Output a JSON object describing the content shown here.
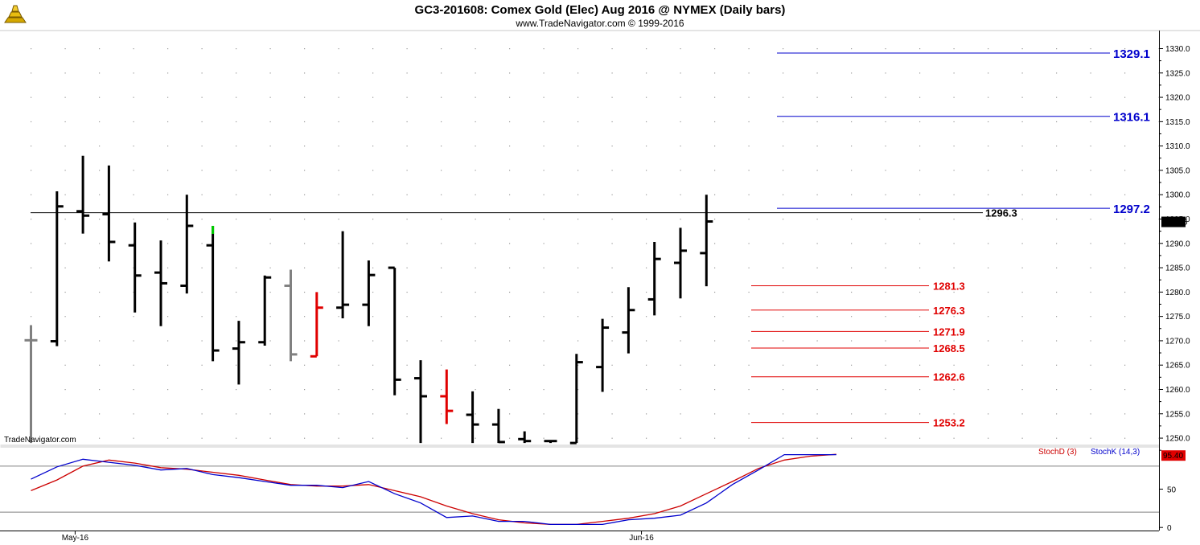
{
  "header": {
    "title": "GC3-201608:  Comex Gold (Elec) Aug 2016 @ NYMEX  (Daily bars)",
    "subtitle": "www.TradeNavigator.com © 1999-2016",
    "watermark": "TradeNavigator.com",
    "logo_icon": "gold-bars-icon"
  },
  "colors": {
    "background": "#ffffff",
    "bar_default": "#000000",
    "bar_gray": "#808080",
    "bar_red": "#e00000",
    "bar_green": "#00cc00",
    "resistance": "#0000cc",
    "support": "#e00000",
    "stoch_d": "#cc0000",
    "stoch_k": "#0000cc"
  },
  "chart_data": [
    {
      "type": "ohlc",
      "title": "GC3-201608:  Comex Gold (Elec) Aug 2016 @ NYMEX  (Daily bars)",
      "ylim": [
        1249,
        1334
      ],
      "yticks": [
        1250.0,
        1255.0,
        1260.0,
        1265.0,
        1270.0,
        1275.0,
        1280.0,
        1285.0,
        1290.0,
        1295.0,
        1300.0,
        1305.0,
        1310.0,
        1315.0,
        1320.0,
        1325.0,
        1330.0
      ],
      "xticks": [
        {
          "label": "May-16",
          "index": 1.7
        },
        {
          "label": "Jun-16",
          "index": 23.5
        }
      ],
      "last_price": 1294.5,
      "last_price_label": "1294.5",
      "bars": [
        {
          "o": 1270.1,
          "h": 1273.2,
          "l": 1249.0,
          "c": 1270.1,
          "color": "gray"
        },
        {
          "o": 1269.9,
          "h": 1300.7,
          "l": 1268.9,
          "c": 1297.6,
          "color": "black"
        },
        {
          "o": 1296.6,
          "h": 1308.0,
          "l": 1292.0,
          "c": 1295.7,
          "color": "black"
        },
        {
          "o": 1296.0,
          "h": 1306.0,
          "l": 1286.3,
          "c": 1290.3,
          "color": "black"
        },
        {
          "o": 1289.6,
          "h": 1294.3,
          "l": 1275.8,
          "c": 1283.4,
          "color": "black"
        },
        {
          "o": 1284.0,
          "h": 1290.6,
          "l": 1273.0,
          "c": 1281.8,
          "color": "black"
        },
        {
          "o": 1281.3,
          "h": 1300.0,
          "l": 1279.7,
          "c": 1293.6,
          "color": "black"
        },
        {
          "o": 1289.6,
          "h": 1293.6,
          "l": 1265.8,
          "c": 1268.0,
          "color": "black",
          "high_tick": "green"
        },
        {
          "o": 1268.4,
          "h": 1274.1,
          "l": 1261.0,
          "c": 1269.7,
          "color": "black"
        },
        {
          "o": 1269.7,
          "h": 1283.4,
          "l": 1269.0,
          "c": 1283.0,
          "color": "black"
        },
        {
          "o": 1281.3,
          "h": 1284.6,
          "l": 1265.8,
          "c": 1267.2,
          "color": "gray"
        },
        {
          "o": 1266.8,
          "h": 1280.0,
          "l": 1266.8,
          "c": 1276.8,
          "color": "red"
        },
        {
          "o": 1276.8,
          "h": 1292.5,
          "l": 1274.6,
          "c": 1277.4,
          "color": "black"
        },
        {
          "o": 1277.4,
          "h": 1286.5,
          "l": 1273.0,
          "c": 1283.5,
          "color": "black"
        },
        {
          "o": 1285.0,
          "h": 1285.0,
          "l": 1258.8,
          "c": 1262.0,
          "color": "black"
        },
        {
          "o": 1262.3,
          "h": 1266.0,
          "l": 1249.0,
          "c": 1258.6,
          "color": "black"
        },
        {
          "o": 1258.6,
          "h": 1264.1,
          "l": 1252.9,
          "c": 1255.6,
          "color": "red"
        },
        {
          "o": 1254.8,
          "h": 1259.6,
          "l": 1249.0,
          "c": 1252.8,
          "color": "black"
        },
        {
          "o": 1252.8,
          "h": 1256.0,
          "l": 1249.0,
          "c": 1249.2,
          "color": "black"
        },
        {
          "o": 1249.8,
          "h": 1251.4,
          "l": 1249.0,
          "c": 1249.4,
          "color": "black"
        },
        {
          "o": 1249.4,
          "h": 1249.4,
          "l": 1249.0,
          "c": 1249.4,
          "color": "black"
        },
        {
          "o": 1249.0,
          "h": 1267.3,
          "l": 1249.0,
          "c": 1265.6,
          "color": "black"
        },
        {
          "o": 1264.6,
          "h": 1274.5,
          "l": 1259.5,
          "c": 1272.7,
          "color": "black"
        },
        {
          "o": 1271.7,
          "h": 1281.0,
          "l": 1267.4,
          "c": 1276.3,
          "color": "black"
        },
        {
          "o": 1278.5,
          "h": 1290.3,
          "l": 1275.2,
          "c": 1286.8,
          "color": "black"
        },
        {
          "o": 1286.0,
          "h": 1293.2,
          "l": 1278.7,
          "c": 1288.5,
          "color": "black"
        },
        {
          "o": 1288.0,
          "h": 1300.0,
          "l": 1281.2,
          "c": 1294.5,
          "color": "black"
        }
      ],
      "levels": [
        {
          "value": 1329.1,
          "label": "1329.1",
          "kind": "resistance"
        },
        {
          "value": 1316.1,
          "label": "1316.1",
          "kind": "resistance"
        },
        {
          "value": 1297.2,
          "label": "1297.2",
          "kind": "resistance"
        },
        {
          "value": 1296.3,
          "label": "1296.3",
          "kind": "pivot"
        },
        {
          "value": 1281.3,
          "label": "1281.3",
          "kind": "support"
        },
        {
          "value": 1276.3,
          "label": "1276.3",
          "kind": "support"
        },
        {
          "value": 1271.9,
          "label": "1271.9",
          "kind": "support"
        },
        {
          "value": 1268.5,
          "label": "1268.5",
          "kind": "support"
        },
        {
          "value": 1262.6,
          "label": "1262.6",
          "kind": "support"
        },
        {
          "value": 1253.2,
          "label": "1253.2",
          "kind": "support"
        }
      ]
    },
    {
      "type": "line",
      "title": "StochD (3)  StochK (14,3)",
      "ylim": [
        -4,
        104
      ],
      "yticks": [
        0,
        50
      ],
      "guides": [
        80,
        20
      ],
      "last_value_label": "95.40",
      "series": [
        {
          "name": "StochD (3)",
          "values": [
            48,
            62,
            80,
            88,
            84,
            78,
            76,
            72,
            68,
            62,
            56,
            54,
            54,
            56,
            48,
            40,
            28,
            18,
            10,
            6,
            4,
            4,
            8,
            12,
            18,
            28,
            44,
            60,
            77,
            88,
            93,
            95.4
          ]
        },
        {
          "name": "StochK (14,3)",
          "values": [
            63,
            79,
            89,
            85,
            81,
            75,
            77,
            69,
            65,
            60,
            55,
            55,
            52,
            60,
            44,
            32,
            13,
            15,
            8,
            8,
            4,
            4,
            4,
            10,
            12,
            16,
            32,
            56,
            75,
            95,
            95,
            95
          ]
        }
      ]
    }
  ]
}
